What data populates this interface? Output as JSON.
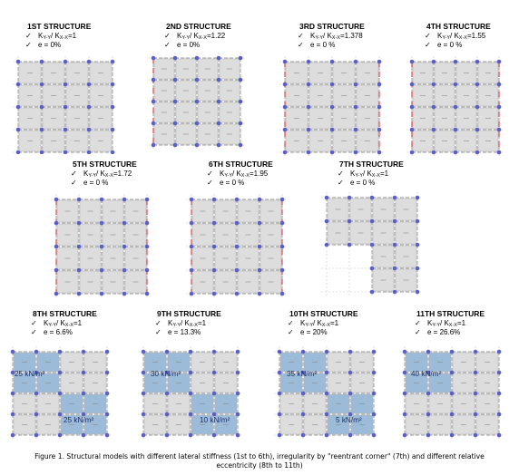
{
  "panels": [
    {
      "title": "1ST STRUCTURE",
      "ratio": "=1",
      "ecc": "e = 0%"
    },
    {
      "title": "2ND STRUCTURE",
      "ratio": "=1.22",
      "ecc": "e = 0%"
    },
    {
      "title": "3RD STRUCTURE",
      "ratio": "=1.378",
      "ecc": "e = 0 %"
    },
    {
      "title": "4TH STRUCTURE",
      "ratio": "=1.55",
      "ecc": "e = 0 %"
    },
    {
      "title": "5TH STRUCTURE",
      "ratio": "=1.72",
      "ecc": "e = 0 %"
    },
    {
      "title": "6TH STRUCTURE",
      "ratio": "=1.95",
      "ecc": "e = 0 %"
    },
    {
      "title": "7TH STRUCTURE",
      "ratio": "=1",
      "ecc": "e = 0 %"
    },
    {
      "title": "8TH STRUCTURE",
      "ratio": "=1",
      "ecc": "e = 6.6%"
    },
    {
      "title": "9TH STRUCTURE",
      "ratio": "=1",
      "ecc": "e = 13.3%"
    },
    {
      "title": "10TH STRUCTURE",
      "ratio": "=1",
      "ecc": "e = 20%"
    },
    {
      "title": "11TH STRUCTURE",
      "ratio": "=1",
      "ecc": "e = 26.6%"
    }
  ],
  "stiffness_label": {
    "k_letter": "K",
    "ky_sub": "Y-Y",
    "slash": "/",
    "kx_sub": "X-X"
  },
  "check_mark": "✓",
  "loads": {
    "s8": {
      "top": "25 kN/m²",
      "bottom": "25 kN/m²"
    },
    "s9": {
      "top": "30 kN/m²",
      "bottom": "10 kN/m²"
    },
    "s10": {
      "top": "35 kN/m²",
      "bottom": "5 kN/m²"
    },
    "s11": {
      "top": "40 kN/m²"
    }
  },
  "caption": "Figure 1. Structural models with different lateral stiffness (1st to 6th), irregularity by \"reentrant corner\" (7th) and different relative eccentricity (8th to 11th)",
  "colors": {
    "slab": "#dddddd",
    "loaded": "#9cbbd8",
    "node": "#5a5fc8",
    "grid": "#9a9a9a"
  }
}
